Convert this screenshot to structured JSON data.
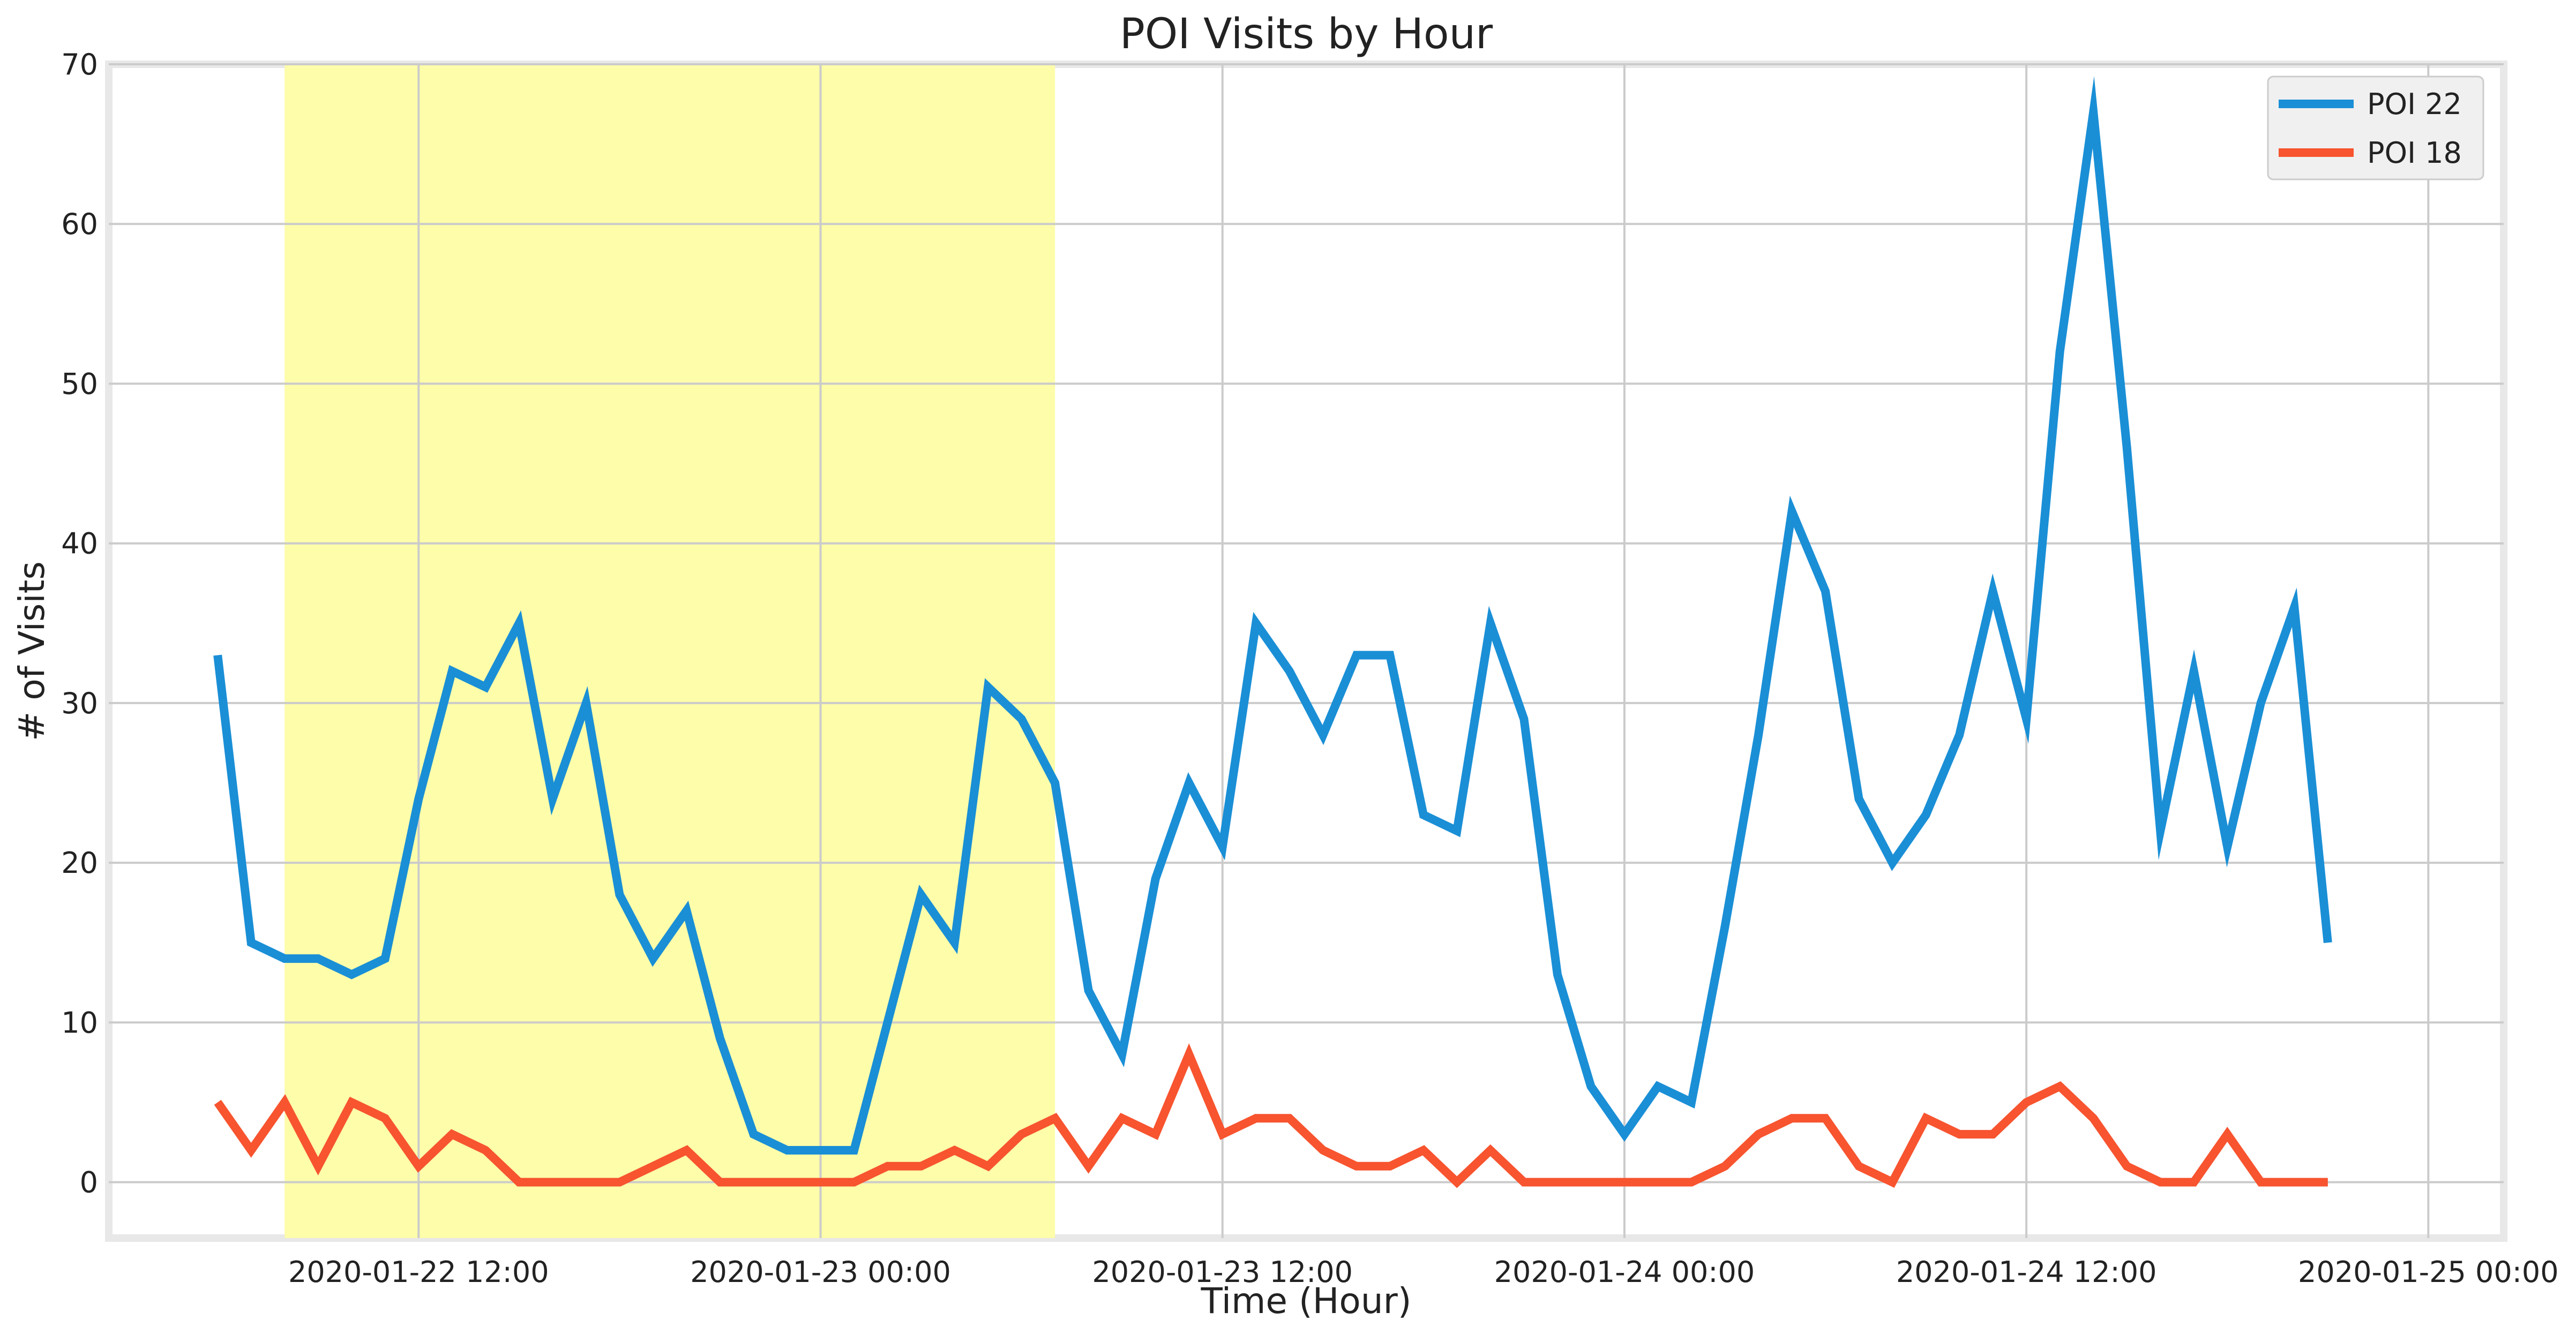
{
  "chart_data": {
    "type": "line",
    "title": "POI Visits by Hour",
    "xlabel": "Time (Hour)",
    "ylabel": "# of Visits",
    "x_start": "2020-01-22 06:00",
    "x_step_hours": 1,
    "x_tick_labels": [
      "2020-01-22 12:00",
      "2020-01-23 00:00",
      "2020-01-23 12:00",
      "2020-01-24 00:00",
      "2020-01-24 12:00",
      "2020-01-25 00:00"
    ],
    "y_ticks": [
      0,
      10,
      20,
      30,
      40,
      50,
      60,
      70
    ],
    "xlim": [
      "2020-01-22 02:45",
      "2020-01-25 02:15"
    ],
    "ylim": [
      -3.5,
      70
    ],
    "grid": true,
    "legend_position": "top-right",
    "highlight": {
      "from": "2020-01-22 08:00",
      "to": "2020-01-23 07:00",
      "color": "#fdfdaa"
    },
    "series": [
      {
        "name": "POI 22",
        "color": "#1a8fd6",
        "values": [
          33,
          15,
          14,
          14,
          13,
          14,
          24,
          32,
          31,
          35,
          24,
          30,
          18,
          14,
          17,
          9,
          3,
          2,
          2,
          2,
          10,
          18,
          15,
          31,
          29,
          25,
          12,
          8,
          19,
          25,
          21,
          35,
          32,
          28,
          33,
          33,
          23,
          22,
          35,
          29,
          13,
          6,
          3,
          6,
          5,
          16,
          28,
          42,
          37,
          24,
          20,
          23,
          28,
          37,
          29,
          52,
          67,
          46,
          22,
          32,
          21,
          30,
          36,
          15
        ]
      },
      {
        "name": "POI 18",
        "color": "#f7542f",
        "values": [
          5,
          2,
          5,
          1,
          5,
          4,
          1,
          3,
          2,
          0,
          0,
          0,
          0,
          1,
          2,
          0,
          0,
          0,
          0,
          0,
          1,
          1,
          2,
          1,
          3,
          4,
          1,
          4,
          3,
          8,
          3,
          4,
          4,
          2,
          1,
          1,
          2,
          0,
          2,
          0,
          0,
          0,
          0,
          0,
          0,
          1,
          3,
          4,
          4,
          1,
          0,
          4,
          3,
          3,
          5,
          6,
          4,
          1,
          0,
          0,
          3,
          0,
          0,
          0
        ]
      }
    ]
  },
  "colors": {
    "figure_bg": "#ffffff",
    "axes_bg": "#ffffff",
    "axes_border": "#e8e8e8",
    "grid": "#cbcbcb",
    "legend_bg": "#f0f0f0",
    "legend_border": "#cccccc"
  }
}
